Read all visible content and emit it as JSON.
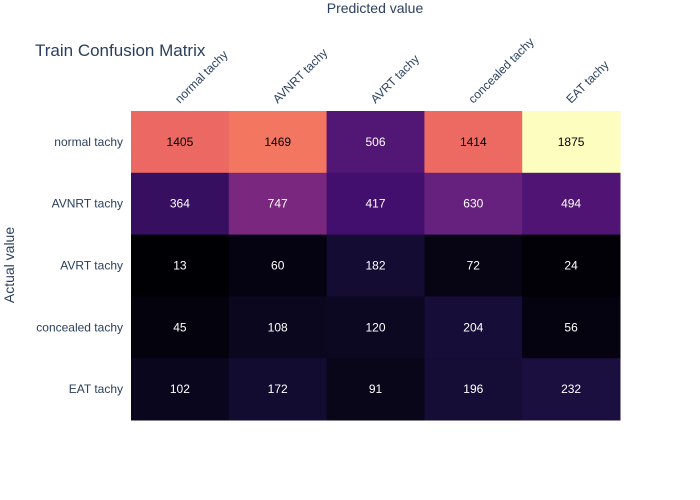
{
  "chart_data": {
    "type": "heatmap",
    "title": "Train Confusion Matrix",
    "xlabel": "Predicted value",
    "ylabel": "Actual value",
    "x_categories": [
      "normal tachy",
      "AVNRT tachy",
      "AVRT tachy",
      "concealed tachy",
      "EAT tachy"
    ],
    "y_categories": [
      "normal tachy",
      "AVNRT tachy",
      "AVRT tachy",
      "concealed tachy",
      "EAT tachy"
    ],
    "z": [
      [
        1405,
        1469,
        506,
        1414,
        1875
      ],
      [
        364,
        747,
        417,
        630,
        494
      ],
      [
        13,
        60,
        182,
        72,
        24
      ],
      [
        45,
        108,
        120,
        204,
        56
      ],
      [
        102,
        172,
        91,
        196,
        232
      ]
    ],
    "colorscale": "magma",
    "x_axis_side": "top",
    "showscale": false
  }
}
